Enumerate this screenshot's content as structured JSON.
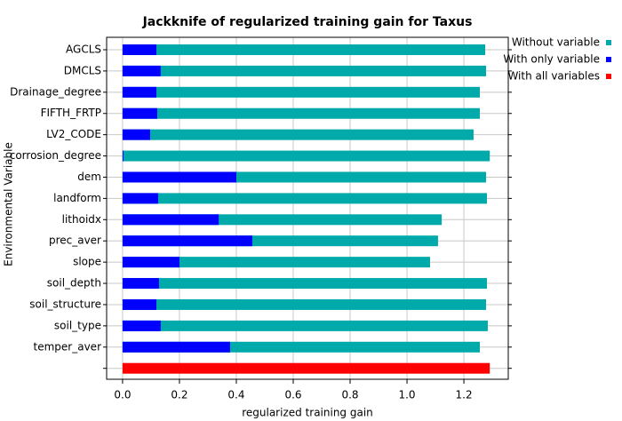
{
  "chart_data": {
    "type": "bar",
    "orientation": "horizontal",
    "title": "Jackknife of regularized training gain for Taxus",
    "xlabel": "regularized training gain",
    "ylabel": "Environmental Variable",
    "categories": [
      "AGCLS",
      "DMCLS",
      "Drainage_degree",
      "FIFTH_FRTP",
      "LV2_CODE",
      "corrosion_degree",
      "dem",
      "landform",
      "lithoidx",
      "prec_aver",
      "slope",
      "soil_depth",
      "soil_structure",
      "soil_type",
      "temper_aver"
    ],
    "series": [
      {
        "name": "Without variable",
        "color": "#00aaaa",
        "values": [
          1.275,
          1.278,
          1.256,
          1.256,
          1.234,
          1.291,
          1.278,
          1.281,
          1.122,
          1.109,
          1.081,
          1.281,
          1.278,
          1.284,
          1.256
        ]
      },
      {
        "name": "With only variable",
        "color": "#0000ff",
        "values": [
          0.119,
          0.134,
          0.119,
          0.122,
          0.097,
          0.003,
          0.4,
          0.125,
          0.338,
          0.456,
          0.2,
          0.128,
          0.119,
          0.134,
          0.378
        ]
      }
    ],
    "all_variables": {
      "name": "With all variables",
      "color": "#ff0000",
      "value": 1.291
    },
    "xlim": [
      -0.056,
      1.356
    ],
    "xticks": [
      {
        "value": 0,
        "label": "0.0"
      },
      0.2,
      0.4,
      0.6,
      0.8,
      {
        "value": 1,
        "label": "1.0"
      },
      1.2
    ],
    "grid": true,
    "legend": "right"
  }
}
